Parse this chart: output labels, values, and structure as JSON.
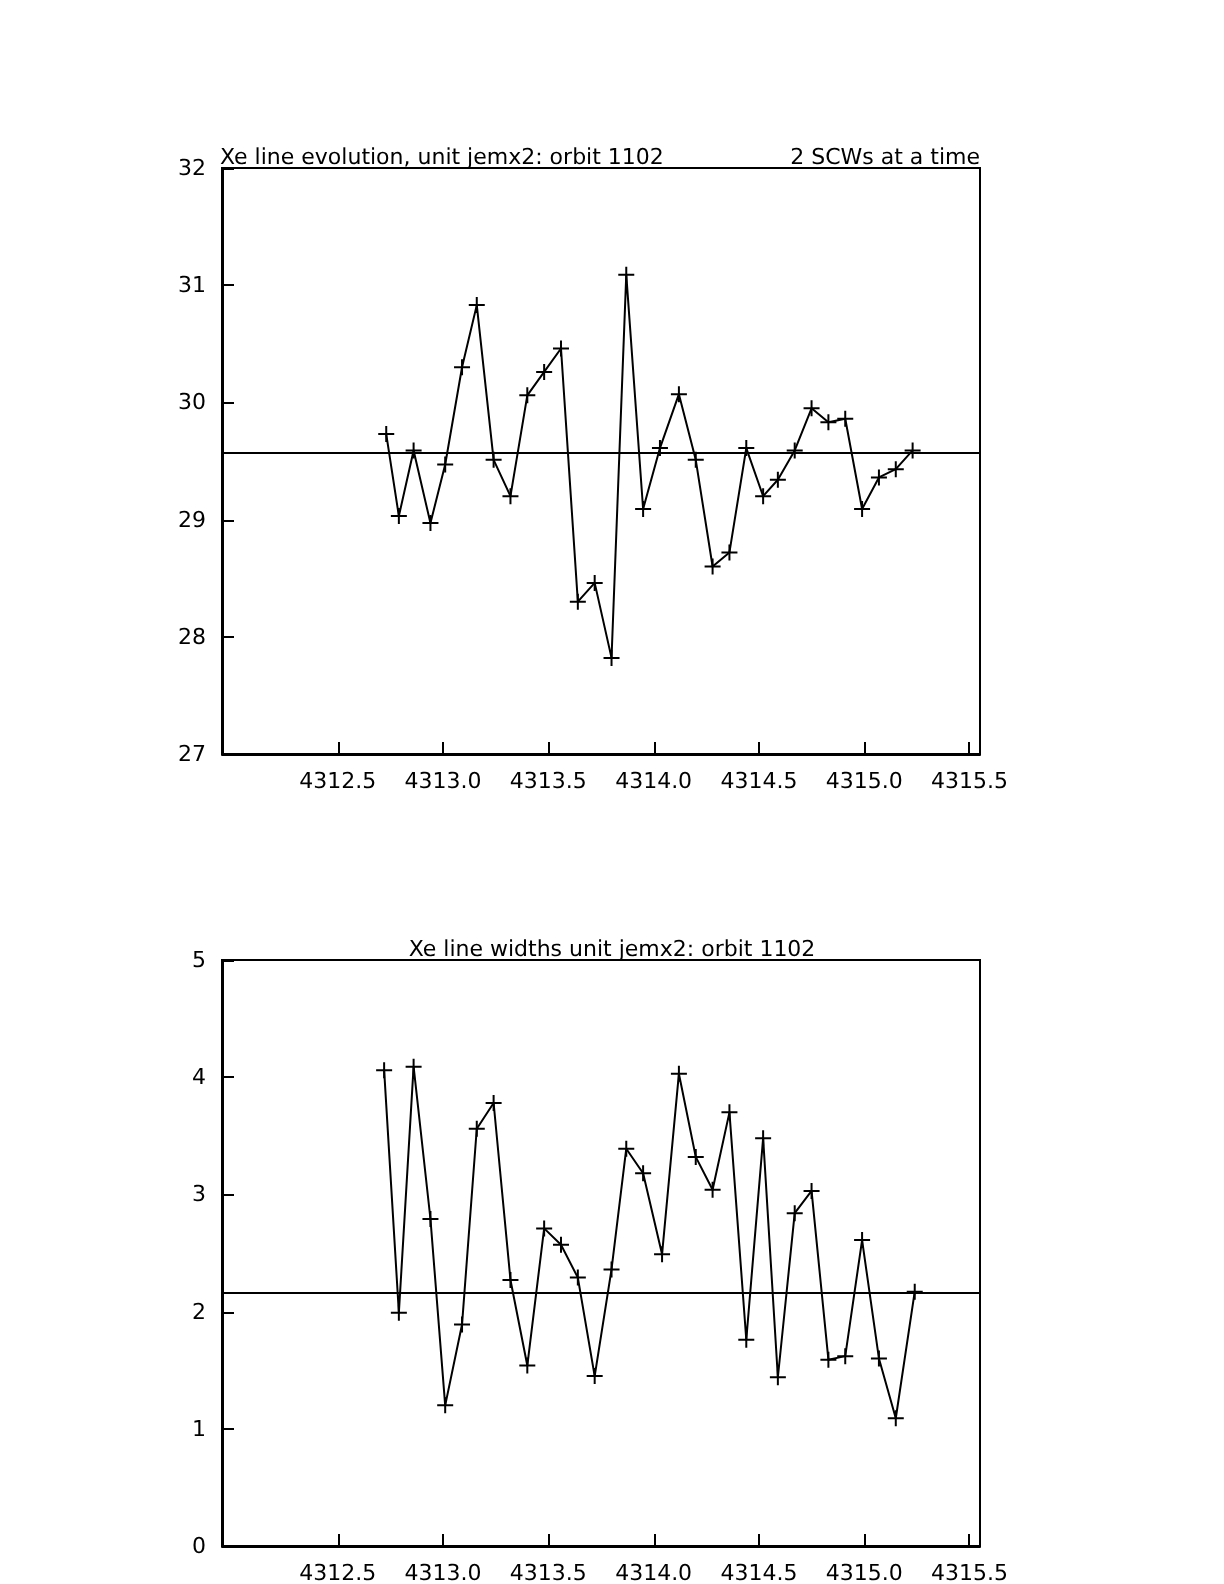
{
  "chart_data": [
    {
      "type": "line",
      "title": "Xe line evolution, unit jemx2: orbit 1102",
      "annotations": [
        "2 SCWs at a time"
      ],
      "x": [
        4312.73,
        4312.79,
        4312.86,
        4312.94,
        4313.01,
        4313.09,
        4313.16,
        4313.24,
        4313.32,
        4313.4,
        4313.48,
        4313.56,
        4313.64,
        4313.72,
        4313.8,
        4313.87,
        4313.95,
        4314.03,
        4314.12,
        4314.2,
        4314.28,
        4314.36,
        4314.44,
        4314.52,
        4314.59,
        4314.67,
        4314.75,
        4314.83,
        4314.91,
        4314.99,
        4315.07,
        4315.15,
        4315.23
      ],
      "series": [
        {
          "color": "#000000",
          "values": [
            29.73,
            29.03,
            29.59,
            28.97,
            29.47,
            30.3,
            30.83,
            29.51,
            29.2,
            30.06,
            30.26,
            30.46,
            28.3,
            28.46,
            27.82,
            31.09,
            29.09,
            29.61,
            30.07,
            29.51,
            28.6,
            28.72,
            29.61,
            29.2,
            29.34,
            29.59,
            29.95,
            29.83,
            29.86,
            29.09,
            29.36,
            29.43,
            29.59
          ]
        }
      ],
      "xlim": [
        4311.95,
        4315.55
      ],
      "xticks": [
        4312.5,
        {
          "value": 4313,
          "label": "4313.0"
        },
        4313.5,
        {
          "value": 4314,
          "label": "4314.0"
        },
        4314.5,
        {
          "value": 4315,
          "label": "4315.0"
        },
        4315.5
      ],
      "ylim": [
        27,
        32
      ],
      "yticks": [
        27,
        28,
        29,
        30,
        31,
        32
      ],
      "ref_lines": [
        {
          "axis": "y",
          "value": 29.58,
          "color": "#000000"
        }
      ],
      "marker": "cross",
      "grid": false
    },
    {
      "type": "line",
      "title": "Xe line widths unit jemx2: orbit 1102",
      "x": [
        4312.72,
        4312.79,
        4312.86,
        4312.94,
        4313.01,
        4313.09,
        4313.16,
        4313.24,
        4313.32,
        4313.4,
        4313.48,
        4313.56,
        4313.64,
        4313.72,
        4313.8,
        4313.87,
        4313.95,
        4314.04,
        4314.12,
        4314.2,
        4314.28,
        4314.36,
        4314.44,
        4314.52,
        4314.59,
        4314.67,
        4314.75,
        4314.83,
        4314.91,
        4314.99,
        4315.07,
        4315.15,
        4315.24
      ],
      "series": [
        {
          "color": "#000000",
          "values": [
            4.06,
            1.99,
            4.09,
            2.79,
            1.2,
            1.89,
            3.56,
            3.78,
            2.27,
            1.54,
            2.71,
            2.57,
            2.29,
            1.45,
            2.36,
            3.39,
            3.18,
            2.49,
            4.03,
            3.32,
            3.04,
            3.7,
            1.76,
            3.48,
            1.44,
            2.84,
            3.03,
            1.59,
            1.62,
            2.61,
            1.6,
            1.09,
            2.17
          ]
        }
      ],
      "xlim": [
        4311.95,
        4315.55
      ],
      "xticks": [
        4312.5,
        {
          "value": 4313,
          "label": "4313.0"
        },
        4313.5,
        {
          "value": 4314,
          "label": "4314.0"
        },
        4314.5,
        {
          "value": 4315,
          "label": "4315.0"
        },
        4315.5
      ],
      "ylim": [
        0,
        5
      ],
      "yticks": [
        0,
        1,
        2,
        3,
        4,
        5
      ],
      "ref_lines": [
        {
          "axis": "y",
          "value": 2.16,
          "color": "#000000"
        }
      ],
      "marker": "cross",
      "grid": false
    }
  ]
}
